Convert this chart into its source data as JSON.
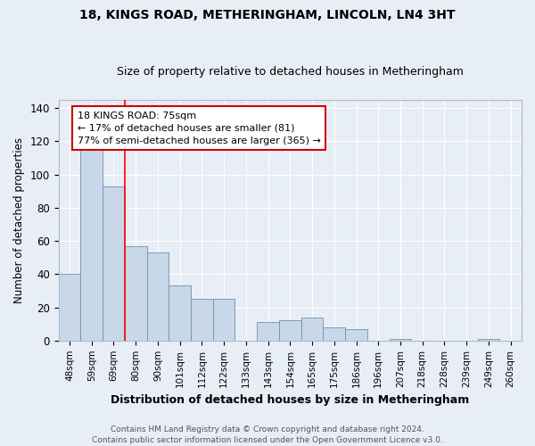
{
  "title": "18, KINGS ROAD, METHERINGHAM, LINCOLN, LN4 3HT",
  "subtitle": "Size of property relative to detached houses in Metheringham",
  "xlabel": "Distribution of detached houses by size in Metheringham",
  "ylabel": "Number of detached properties",
  "categories": [
    "48sqm",
    "59sqm",
    "69sqm",
    "80sqm",
    "90sqm",
    "101sqm",
    "112sqm",
    "122sqm",
    "133sqm",
    "143sqm",
    "154sqm",
    "165sqm",
    "175sqm",
    "186sqm",
    "196sqm",
    "207sqm",
    "218sqm",
    "228sqm",
    "239sqm",
    "249sqm",
    "260sqm"
  ],
  "values": [
    40,
    115,
    93,
    57,
    53,
    33,
    25,
    25,
    0,
    11,
    12,
    14,
    8,
    7,
    0,
    1,
    0,
    0,
    0,
    1,
    0
  ],
  "bar_color": "#c8d8e8",
  "bar_edge_color": "#7090b0",
  "background_color": "#e8eef5",
  "grid_color": "#ffffff",
  "redline_x": 2.5,
  "annotation_line1": "18 KINGS ROAD: 75sqm",
  "annotation_line2": "← 17% of detached houses are smaller (81)",
  "annotation_line3": "77% of semi-detached houses are larger (365) →",
  "annotation_box_color": "#ffffff",
  "annotation_box_edge": "#cc0000",
  "ylim": [
    0,
    145
  ],
  "yticks": [
    0,
    20,
    40,
    60,
    80,
    100,
    120,
    140
  ],
  "footer": "Contains HM Land Registry data © Crown copyright and database right 2024.\nContains public sector information licensed under the Open Government Licence v3.0."
}
